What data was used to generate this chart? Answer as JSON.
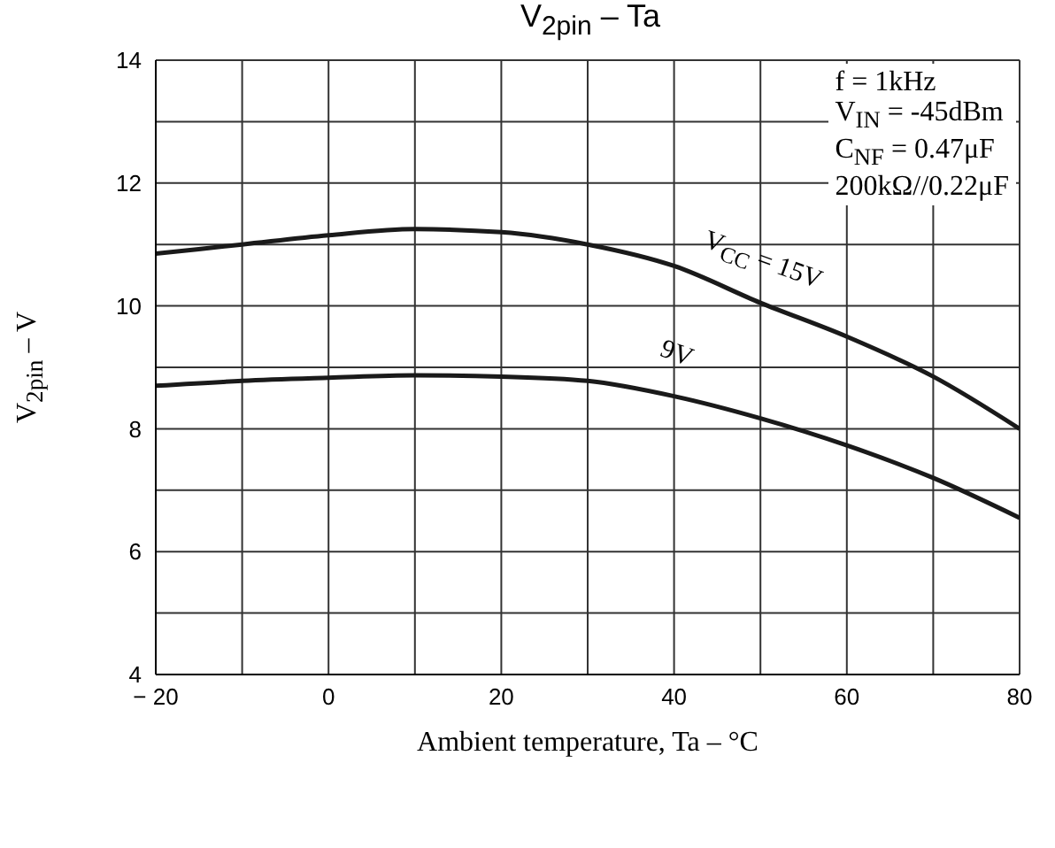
{
  "chart_data": {
    "type": "line",
    "title": "V$_{2pin}$ – Ta",
    "xlabel": "Ambient temperature, Ta – °C",
    "ylabel": "V$_{2pin}$ – V",
    "annotations": [
      "f = 1kHz",
      "V$_{IN}$ = -45dBm",
      "C$_{NF}$ = 0.47μF",
      "200kΩ//0.22μF"
    ],
    "x": [
      -20,
      -10,
      0,
      10,
      20,
      30,
      40,
      50,
      60,
      70,
      80
    ],
    "series": [
      {
        "name": "V$_{CC}$ = 15V",
        "color": "#1a1a1a",
        "values": [
          10.85,
          11.0,
          11.15,
          11.25,
          11.2,
          11.0,
          10.65,
          10.05,
          9.5,
          8.85,
          8.0
        ]
      },
      {
        "name": "9V",
        "color": "#1a1a1a",
        "values": [
          8.7,
          8.78,
          8.83,
          8.87,
          8.85,
          8.78,
          8.53,
          8.17,
          7.73,
          7.2,
          6.55
        ]
      }
    ],
    "xlim": [
      -20,
      80
    ],
    "xticks": [
      {
        "value": -20,
        "label": "− 20"
      },
      0,
      20,
      40,
      60,
      80
    ],
    "ylim": [
      4,
      14
    ],
    "yticks": [
      4,
      6,
      8,
      10,
      12,
      14
    ],
    "grid": true,
    "marker": "none",
    "line_style": "solid"
  }
}
